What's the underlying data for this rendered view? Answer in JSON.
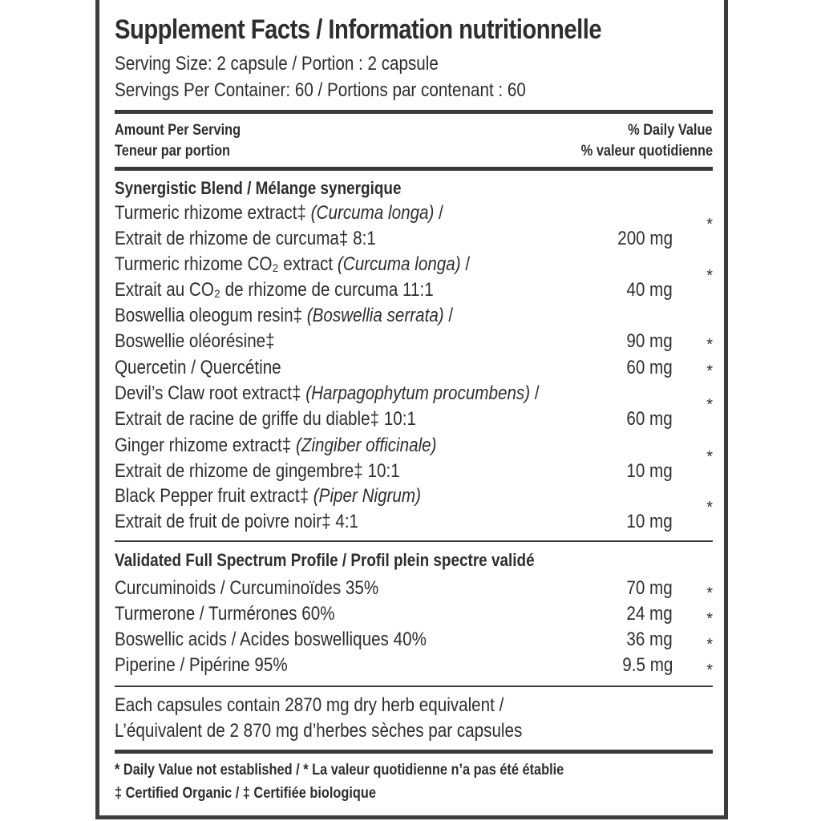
{
  "title": "Supplement Facts / Information nutritionnelle",
  "serving_size": "Serving Size: 2 capsule / Portion : 2 capsule",
  "servings_per_container": "Servings Per Container: 60 / Portions par contenant : 60",
  "header": {
    "amount_en": "Amount Per Serving",
    "amount_fr": "Teneur par portion",
    "dv_en": "% Daily Value",
    "dv_fr": "% valeur quotidienne"
  },
  "blend": {
    "title": "Synergistic Blend / Mélange synergique",
    "items": [
      {
        "line1_pre": "Turmeric rhizome extract‡ ",
        "line1_it": "(Curcuma longa)",
        "line1_post": " /",
        "line2": "Extrait de rhizome de curcuma‡ 8:1",
        "amount": "200 mg",
        "dv": "*"
      },
      {
        "line1_pre": "Turmeric rhizome CO₂ extract ",
        "line1_it": "(Curcuma longa)",
        "line1_post": " /",
        "line2": "Extrait au CO₂ de rhizome de curcuma 11:1",
        "amount": "40 mg",
        "dv": "*"
      },
      {
        "line1_pre": "Boswellia oleogum resin‡ ",
        "line1_it": "(Boswellia serrata)",
        "line1_post": " /",
        "line2": "Boswellie oléorésine‡",
        "amount": "90 mg",
        "dv": "*"
      },
      {
        "single": "Quercetin / Quercétine",
        "amount": "60 mg",
        "dv": "*"
      },
      {
        "line1_pre": "Devil’s Claw root extract‡ ",
        "line1_it": "(Harpagophytum procumbens)",
        "line1_post": " /",
        "line2": "Extrait de racine de griffe du diable‡ 10:1",
        "amount": "60 mg",
        "dv": "*"
      },
      {
        "line1_pre": "Ginger rhizome extract‡ ",
        "line1_it": "(Zingiber officinale)",
        "line1_post": "",
        "line2": "Extrait de rhizome de gingembre‡ 10:1",
        "amount": "10 mg",
        "dv": "*"
      },
      {
        "line1_pre": "Black Pepper fruit extract‡ ",
        "line1_it": "(Piper Nigrum)",
        "line1_post": "",
        "line2": "Extrait de fruit de poivre noir‡ 4:1",
        "amount": "10 mg",
        "dv": "*"
      }
    ]
  },
  "profile": {
    "title": "Validated Full Spectrum Profile / Profil plein spectre validé",
    "items": [
      {
        "label": "Curcuminoids / Curcuminoïdes 35%",
        "amount": "70 mg",
        "dv": "*"
      },
      {
        "label": "Turmerone / Turmérones 60%",
        "amount": "24 mg",
        "dv": "*"
      },
      {
        "label": "Boswellic acids / Acides boswelliques 40%",
        "amount": "36 mg",
        "dv": "*"
      },
      {
        "label": "Piperine / Pipérine 95%",
        "amount": "9.5 mg",
        "dv": "*"
      }
    ]
  },
  "equivalent": {
    "line1": "Each capsules contain 2870 mg dry herb equivalent /",
    "line2": "L’équivalent de 2 870 mg d’herbes sèches par capsules"
  },
  "footnotes": {
    "dv_note": "* Daily Value not established / * La valeur quotidienne n’a pas été établie",
    "organic_note": "‡ Certified Organic / ‡ Certifiée biologique"
  }
}
